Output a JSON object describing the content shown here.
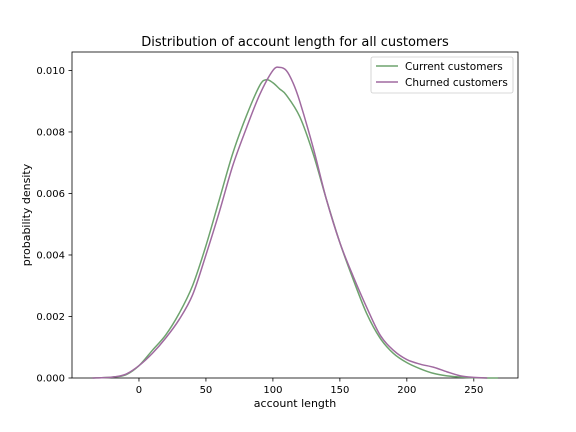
{
  "chart_data": {
    "type": "line",
    "title": "Distribution of account length for all customers",
    "xlabel": "account length",
    "ylabel": "probability density",
    "xlim": [
      -50,
      283
    ],
    "ylim": [
      0,
      0.0106
    ],
    "x_ticks": [
      0,
      50,
      100,
      150,
      200,
      250
    ],
    "y_ticks": [
      0.0,
      0.002,
      0.004,
      0.006,
      0.008,
      0.01
    ],
    "x_tick_labels": [
      "0",
      "50",
      "100",
      "150",
      "200",
      "250"
    ],
    "y_tick_labels": [
      "0.000",
      "0.002",
      "0.004",
      "0.006",
      "0.008",
      "0.010"
    ],
    "grid": false,
    "legend_position": "upper-right",
    "series": [
      {
        "name": "Current customers",
        "color": "#6ea36e",
        "x": [
          -35,
          -20,
          -10,
          0,
          10,
          20,
          30,
          40,
          50,
          60,
          70,
          80,
          90,
          95,
          100,
          105,
          110,
          120,
          130,
          140,
          150,
          160,
          170,
          180,
          190,
          200,
          210,
          220,
          230,
          240,
          250,
          260,
          268
        ],
        "y": [
          0.0,
          3e-05,
          0.0001,
          0.0004,
          0.0009,
          0.0014,
          0.0021,
          0.003,
          0.0043,
          0.0058,
          0.0073,
          0.0085,
          0.0095,
          0.0097,
          0.0096,
          0.0094,
          0.0092,
          0.0085,
          0.0073,
          0.0058,
          0.0044,
          0.0032,
          0.0021,
          0.0013,
          0.0008,
          0.0005,
          0.0003,
          0.00015,
          7e-05,
          3e-05,
          1e-05,
          0.0,
          0.0
        ]
      },
      {
        "name": "Churned customers",
        "color": "#a06aa0",
        "x": [
          -35,
          -20,
          -10,
          0,
          10,
          20,
          30,
          40,
          50,
          60,
          70,
          80,
          90,
          100,
          105,
          110,
          115,
          120,
          130,
          140,
          150,
          160,
          170,
          180,
          190,
          200,
          210,
          220,
          230,
          240,
          250,
          260
        ],
        "y": [
          0.0,
          3e-05,
          0.00012,
          0.0004,
          0.0008,
          0.0013,
          0.0019,
          0.0027,
          0.004,
          0.0054,
          0.0069,
          0.0081,
          0.0092,
          0.01,
          0.0101,
          0.01,
          0.0096,
          0.009,
          0.0075,
          0.0058,
          0.0044,
          0.0033,
          0.0023,
          0.0014,
          0.0009,
          0.0006,
          0.00045,
          0.00035,
          0.0002,
          7e-05,
          2e-05,
          0.0
        ]
      }
    ]
  }
}
